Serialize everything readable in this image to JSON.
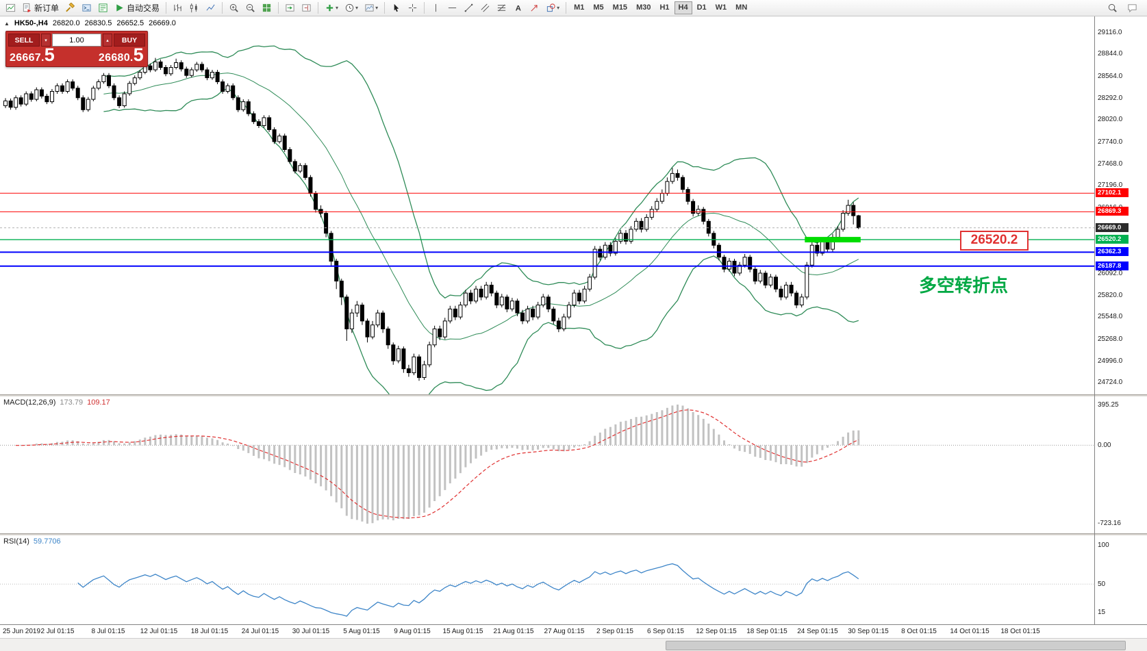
{
  "toolbar": {
    "new_order_label": "新订单",
    "auto_trading_label": "自动交易",
    "timeframes": [
      "M1",
      "M5",
      "M15",
      "M30",
      "H1",
      "H4",
      "D1",
      "W1",
      "MN"
    ],
    "active_timeframe": "H4",
    "icon_names": [
      "chart-window",
      "new-order",
      "expert-advisors",
      "metaeditor",
      "market-watch",
      "auto-trading",
      "bar-chart",
      "candlestick-chart",
      "line-chart",
      "zoom-in",
      "zoom-out",
      "tile-windows",
      "auto-scroll",
      "chart-shift",
      "indicators-add",
      "periods",
      "templates",
      "cursor",
      "crosshair",
      "vertical-line",
      "horizontal-line",
      "trendline",
      "equidistant-channel",
      "fibonacci",
      "text",
      "arrow-tool",
      "shapes",
      "search",
      "chat"
    ]
  },
  "chart": {
    "header": {
      "symbol": "HK50-,H4",
      "open": "26820.0",
      "high": "26830.5",
      "low": "26652.5",
      "close": "26669.0"
    },
    "trade_panel": {
      "sell_label": "SELL",
      "buy_label": "BUY",
      "volume": "1.00",
      "sell_price": "26667.5",
      "buy_price": "26680.5"
    },
    "annotations": {
      "price_label": "26520.2",
      "turning_point": "多空转折点"
    },
    "levels": [
      {
        "price": 27102.1,
        "label": "27102.1",
        "color": "#fe0000",
        "width": 1,
        "type": "line"
      },
      {
        "price": 26869.3,
        "label": "26869.3",
        "color": "#fe0000",
        "width": 1,
        "type": "line"
      },
      {
        "price": 26669.0,
        "label": "26669.0",
        "color": "#2b2b2b",
        "width": 1,
        "type": "bid"
      },
      {
        "price": 26520.2,
        "label": "26520.2",
        "color": "#00b050",
        "width": 1.4,
        "type": "line"
      },
      {
        "price": 26362.3,
        "label": "26362.3",
        "color": "#0000fe",
        "width": 2,
        "type": "line"
      },
      {
        "price": 26187.8,
        "label": "26187.8",
        "color": "#0000fe",
        "width": 2,
        "type": "line"
      }
    ]
  },
  "chart_data": {
    "type": "candlestick",
    "symbol": "HK50",
    "timeframe": "H4",
    "price_range": [
      24580,
      29320
    ],
    "price_ticks": [
      29116.0,
      28844.0,
      28564.0,
      28292.0,
      28020.0,
      27740.0,
      27468.0,
      27196.0,
      26916.0,
      26644.0,
      26092.0,
      25820.0,
      25548.0,
      25268.0,
      24996.0,
      24724.0
    ],
    "bollinger": {
      "period": 20,
      "deviation": 2
    },
    "macd": {
      "label": "MACD(12,26,9)",
      "value_main": "173.79",
      "value_signal": "109.17",
      "fast": 12,
      "slow": 26,
      "signal": 9,
      "scale": [
        "395.25",
        "0.00",
        "-723.16"
      ]
    },
    "rsi": {
      "label": "RSI(14)",
      "value": "59.7706",
      "period": 14,
      "levels": [
        "100",
        "50",
        "15"
      ]
    },
    "time_labels": [
      "25 Jun 2019",
      "2 Jul 01:15",
      "8 Jul 01:15",
      "12 Jul 01:15",
      "18 Jul 01:15",
      "24 Jul 01:15",
      "30 Jul 01:15",
      "5 Aug 01:15",
      "9 Aug 01:15",
      "15 Aug 01:15",
      "21 Aug 01:15",
      "27 Aug 01:15",
      "2 Sep 01:15",
      "6 Sep 01:15",
      "12 Sep 01:15",
      "18 Sep 01:15",
      "24 Sep 01:15",
      "30 Sep 01:15",
      "8 Oct 01:15",
      "14 Oct 01:15",
      "18 Oct 01:15"
    ],
    "candles": [
      [
        28200,
        28295,
        28170,
        28260
      ],
      [
        28260,
        28290,
        28150,
        28180
      ],
      [
        28180,
        28330,
        28150,
        28300
      ],
      [
        28300,
        28330,
        28190,
        28220
      ],
      [
        28220,
        28380,
        28195,
        28350
      ],
      [
        28350,
        28380,
        28250,
        28280
      ],
      [
        28280,
        28430,
        28255,
        28400
      ],
      [
        28400,
        28430,
        28290,
        28320
      ],
      [
        28320,
        28350,
        28220,
        28250
      ],
      [
        28250,
        28410,
        28225,
        28380
      ],
      [
        28380,
        28480,
        28350,
        28450
      ],
      [
        28450,
        28480,
        28350,
        28380
      ],
      [
        28380,
        28530,
        28355,
        28500
      ],
      [
        28500,
        28530,
        28390,
        28420
      ],
      [
        28420,
        28450,
        28270,
        28300
      ],
      [
        28300,
        28330,
        28120,
        28150
      ],
      [
        28150,
        28310,
        28125,
        28280
      ],
      [
        28280,
        28450,
        28255,
        28420
      ],
      [
        28420,
        28530,
        28395,
        28500
      ],
      [
        28500,
        28610,
        28475,
        28580
      ],
      [
        28580,
        28610,
        28420,
        28450
      ],
      [
        28450,
        28480,
        28270,
        28300
      ],
      [
        28300,
        28330,
        28170,
        28200
      ],
      [
        28200,
        28380,
        28175,
        28350
      ],
      [
        28350,
        28510,
        28325,
        28480
      ],
      [
        28480,
        28580,
        28455,
        28550
      ],
      [
        28550,
        28650,
        28525,
        28620
      ],
      [
        28620,
        28760,
        28595,
        28700
      ],
      [
        28700,
        28730,
        28620,
        28650
      ],
      [
        28650,
        28800,
        28625,
        28750
      ],
      [
        28750,
        28780,
        28650,
        28680
      ],
      [
        28680,
        28710,
        28570,
        28600
      ],
      [
        28600,
        28710,
        28575,
        28680
      ],
      [
        28680,
        28790,
        28655,
        28740
      ],
      [
        28740,
        28770,
        28630,
        28660
      ],
      [
        28660,
        28690,
        28550,
        28580
      ],
      [
        28580,
        28680,
        28555,
        28650
      ],
      [
        28650,
        28750,
        28625,
        28720
      ],
      [
        28720,
        28750,
        28620,
        28650
      ],
      [
        28650,
        28680,
        28520,
        28550
      ],
      [
        28550,
        28650,
        28525,
        28620
      ],
      [
        28620,
        28650,
        28470,
        28500
      ],
      [
        28500,
        28530,
        28350,
        28380
      ],
      [
        28380,
        28480,
        28355,
        28450
      ],
      [
        28450,
        28480,
        28270,
        28300
      ],
      [
        28300,
        28330,
        28120,
        28150
      ],
      [
        28150,
        28280,
        28125,
        28250
      ],
      [
        28250,
        28280,
        28070,
        28100
      ],
      [
        28100,
        28130,
        27970,
        28000
      ],
      [
        28000,
        28030,
        27920,
        27950
      ],
      [
        27950,
        28080,
        27925,
        28050
      ],
      [
        28050,
        28080,
        27870,
        27900
      ],
      [
        27900,
        27930,
        27720,
        27750
      ],
      [
        27750,
        27850,
        27725,
        27820
      ],
      [
        27820,
        27850,
        27620,
        27650
      ],
      [
        27650,
        27680,
        27470,
        27500
      ],
      [
        27500,
        27530,
        27350,
        27380
      ],
      [
        27380,
        27480,
        27355,
        27450
      ],
      [
        27450,
        27480,
        27270,
        27300
      ],
      [
        27300,
        27330,
        27060,
        27100
      ],
      [
        27100,
        27130,
        26860,
        26900
      ],
      [
        26900,
        26950,
        26800,
        26850
      ],
      [
        26850,
        26880,
        26550,
        26600
      ],
      [
        26600,
        26630,
        26180,
        26250
      ],
      [
        26250,
        26280,
        25900,
        26000
      ],
      [
        26000,
        26030,
        25700,
        25800
      ],
      [
        25800,
        25830,
        25250,
        25400
      ],
      [
        25400,
        25650,
        25350,
        25600
      ],
      [
        25600,
        25750,
        25550,
        25700
      ],
      [
        25700,
        25730,
        25450,
        25500
      ],
      [
        25500,
        25530,
        25230,
        25300
      ],
      [
        25300,
        25500,
        25270,
        25450
      ],
      [
        25450,
        25640,
        25420,
        25600
      ],
      [
        25600,
        25630,
        25350,
        25400
      ],
      [
        25400,
        25430,
        25150,
        25200
      ],
      [
        25200,
        25230,
        24950,
        25000
      ],
      [
        25000,
        25190,
        24970,
        25150
      ],
      [
        25150,
        25180,
        24850,
        24900
      ],
      [
        24900,
        24950,
        24800,
        24850
      ],
      [
        24850,
        25090,
        24820,
        25050
      ],
      [
        25050,
        25080,
        24750,
        24790
      ],
      [
        24790,
        25000,
        24760,
        24950
      ],
      [
        24950,
        25240,
        24920,
        25200
      ],
      [
        25200,
        25440,
        25170,
        25400
      ],
      [
        25400,
        25440,
        25260,
        25300
      ],
      [
        25300,
        25540,
        25270,
        25500
      ],
      [
        25500,
        25690,
        25470,
        25650
      ],
      [
        25650,
        25690,
        25510,
        25550
      ],
      [
        25550,
        25740,
        25520,
        25700
      ],
      [
        25700,
        25890,
        25670,
        25850
      ],
      [
        25850,
        25890,
        25710,
        25750
      ],
      [
        25750,
        25940,
        25720,
        25900
      ],
      [
        25900,
        25940,
        25760,
        25800
      ],
      [
        25800,
        25990,
        25770,
        25950
      ],
      [
        25950,
        25990,
        25810,
        25850
      ],
      [
        25850,
        25880,
        25660,
        25700
      ],
      [
        25700,
        25840,
        25670,
        25800
      ],
      [
        25800,
        25830,
        25610,
        25650
      ],
      [
        25650,
        25790,
        25620,
        25750
      ],
      [
        25750,
        25780,
        25560,
        25600
      ],
      [
        25600,
        25640,
        25460,
        25500
      ],
      [
        25500,
        25690,
        25470,
        25650
      ],
      [
        25650,
        25690,
        25510,
        25550
      ],
      [
        25550,
        25740,
        25520,
        25700
      ],
      [
        25700,
        25840,
        25670,
        25800
      ],
      [
        25800,
        25830,
        25610,
        25650
      ],
      [
        25650,
        25680,
        25460,
        25500
      ],
      [
        25500,
        25540,
        25360,
        25400
      ],
      [
        25400,
        25590,
        25370,
        25550
      ],
      [
        25550,
        25740,
        25520,
        25700
      ],
      [
        25700,
        25890,
        25670,
        25850
      ],
      [
        25850,
        25890,
        25710,
        25750
      ],
      [
        25750,
        25940,
        25720,
        25900
      ],
      [
        25900,
        26090,
        25870,
        26050
      ],
      [
        26050,
        26440,
        26020,
        26400
      ],
      [
        26400,
        26440,
        26260,
        26300
      ],
      [
        26300,
        26490,
        26270,
        26450
      ],
      [
        26450,
        26490,
        26310,
        26350
      ],
      [
        26350,
        26540,
        26320,
        26500
      ],
      [
        26500,
        26640,
        26470,
        26600
      ],
      [
        26600,
        26640,
        26460,
        26500
      ],
      [
        26500,
        26690,
        26470,
        26650
      ],
      [
        26650,
        26790,
        26620,
        26750
      ],
      [
        26750,
        26790,
        26610,
        26650
      ],
      [
        26650,
        26840,
        26620,
        26800
      ],
      [
        26800,
        26940,
        26770,
        26900
      ],
      [
        26900,
        27040,
        26870,
        27000
      ],
      [
        27000,
        27150,
        26970,
        27100
      ],
      [
        27100,
        27300,
        27070,
        27250
      ],
      [
        27250,
        27420,
        27220,
        27350
      ],
      [
        27350,
        27400,
        27260,
        27300
      ],
      [
        27300,
        27330,
        27110,
        27150
      ],
      [
        27150,
        27180,
        26960,
        27000
      ],
      [
        27000,
        27030,
        26810,
        26850
      ],
      [
        26850,
        26950,
        26820,
        26900
      ],
      [
        26900,
        26930,
        26710,
        26750
      ],
      [
        26750,
        26780,
        26560,
        26600
      ],
      [
        26600,
        26630,
        26410,
        26450
      ],
      [
        26450,
        26480,
        26260,
        26300
      ],
      [
        26300,
        26330,
        26110,
        26150
      ],
      [
        26150,
        26290,
        26120,
        26250
      ],
      [
        26250,
        26280,
        26060,
        26100
      ],
      [
        26100,
        26240,
        26070,
        26200
      ],
      [
        26200,
        26340,
        26170,
        26300
      ],
      [
        26300,
        26330,
        26110,
        26150
      ],
      [
        26150,
        26180,
        25960,
        26000
      ],
      [
        26000,
        26140,
        25970,
        26100
      ],
      [
        26100,
        26130,
        25910,
        25950
      ],
      [
        25950,
        26090,
        25920,
        26050
      ],
      [
        26050,
        26080,
        25860,
        25900
      ],
      [
        25900,
        25940,
        25760,
        25800
      ],
      [
        25800,
        25990,
        25770,
        25950
      ],
      [
        25950,
        25990,
        25810,
        25850
      ],
      [
        25850,
        25880,
        25660,
        25700
      ],
      [
        25700,
        25840,
        25670,
        25800
      ],
      [
        25800,
        26240,
        25770,
        26200
      ],
      [
        26200,
        26490,
        26170,
        26450
      ],
      [
        26450,
        26490,
        26310,
        26350
      ],
      [
        26350,
        26540,
        26320,
        26500
      ],
      [
        26500,
        26540,
        26360,
        26400
      ],
      [
        26400,
        26590,
        26370,
        26550
      ],
      [
        26550,
        26690,
        26520,
        26650
      ],
      [
        26650,
        26890,
        26620,
        26850
      ],
      [
        26850,
        27020,
        26820,
        26950
      ],
      [
        26950,
        26990,
        26710,
        26820
      ],
      [
        26820,
        26831,
        26652,
        26669
      ]
    ]
  }
}
